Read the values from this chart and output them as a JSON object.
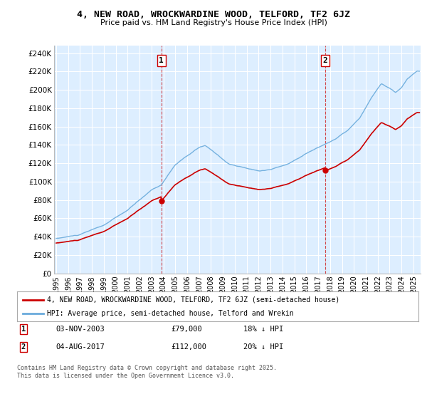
{
  "title": "4, NEW ROAD, WROCKWARDINE WOOD, TELFORD, TF2 6JZ",
  "subtitle": "Price paid vs. HM Land Registry's House Price Index (HPI)",
  "ylabel_ticks": [
    "£0",
    "£20K",
    "£40K",
    "£60K",
    "£80K",
    "£100K",
    "£120K",
    "£140K",
    "£160K",
    "£180K",
    "£200K",
    "£220K",
    "£240K"
  ],
  "ylim": [
    0,
    248000
  ],
  "yticks": [
    0,
    20000,
    40000,
    60000,
    80000,
    100000,
    120000,
    140000,
    160000,
    180000,
    200000,
    220000,
    240000
  ],
  "background_color": "#ffffff",
  "plot_bg_color": "#ddeeff",
  "grid_color": "#ffffff",
  "hpi_color": "#6aabdc",
  "price_color": "#cc0000",
  "sale1_date": 2003.84,
  "sale1_price": 79000,
  "sale2_date": 2017.59,
  "sale2_price": 112000,
  "legend_label1": "4, NEW ROAD, WROCKWARDINE WOOD, TELFORD, TF2 6JZ (semi-detached house)",
  "legend_label2": "HPI: Average price, semi-detached house, Telford and Wrekin",
  "annotation1_text": "1",
  "annotation2_text": "2",
  "footer": "Contains HM Land Registry data © Crown copyright and database right 2025.\nThis data is licensed under the Open Government Licence v3.0.",
  "xlim_start": 1994.8,
  "xlim_end": 2025.6
}
